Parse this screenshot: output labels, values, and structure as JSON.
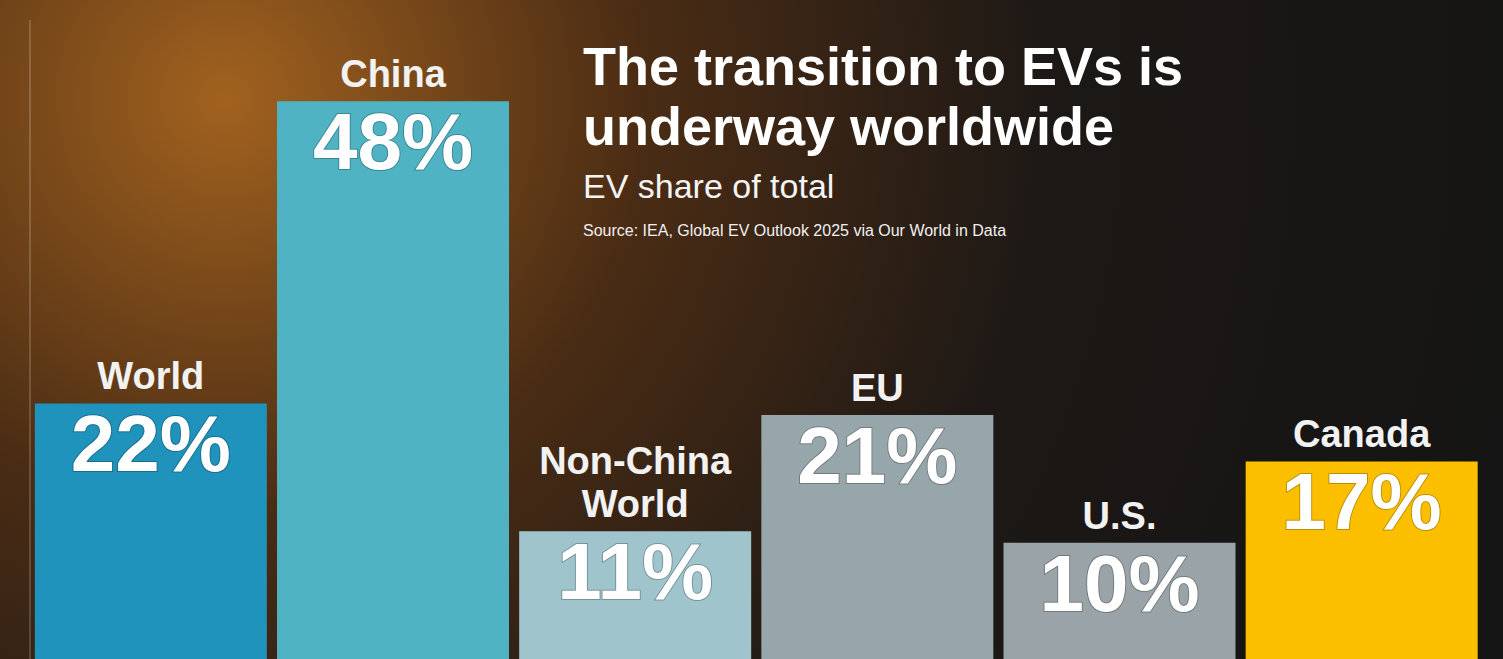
{
  "chart_data": {
    "type": "bar",
    "title": "The transition to EVs is underway worldwide",
    "subtitle": "EV share of total",
    "source": "Source: IEA, Global EV Outlook 2025 via Our World in Data",
    "categories": [
      "World",
      "China",
      "Non-China World",
      "EU",
      "U.S.",
      "Canada"
    ],
    "values": [
      22,
      48,
      11,
      21,
      10,
      17
    ],
    "value_labels": [
      "22%",
      "48%",
      "11%",
      "21%",
      "10%",
      "17%"
    ],
    "colors": [
      "#1f93bb",
      "#4fb3c4",
      "#9fc4cc",
      "#97a6ab",
      "#9aa3a7",
      "#fbbf00"
    ],
    "ylim": [
      0,
      55
    ],
    "data_labels": true,
    "tick_labels": false,
    "grid": false
  }
}
